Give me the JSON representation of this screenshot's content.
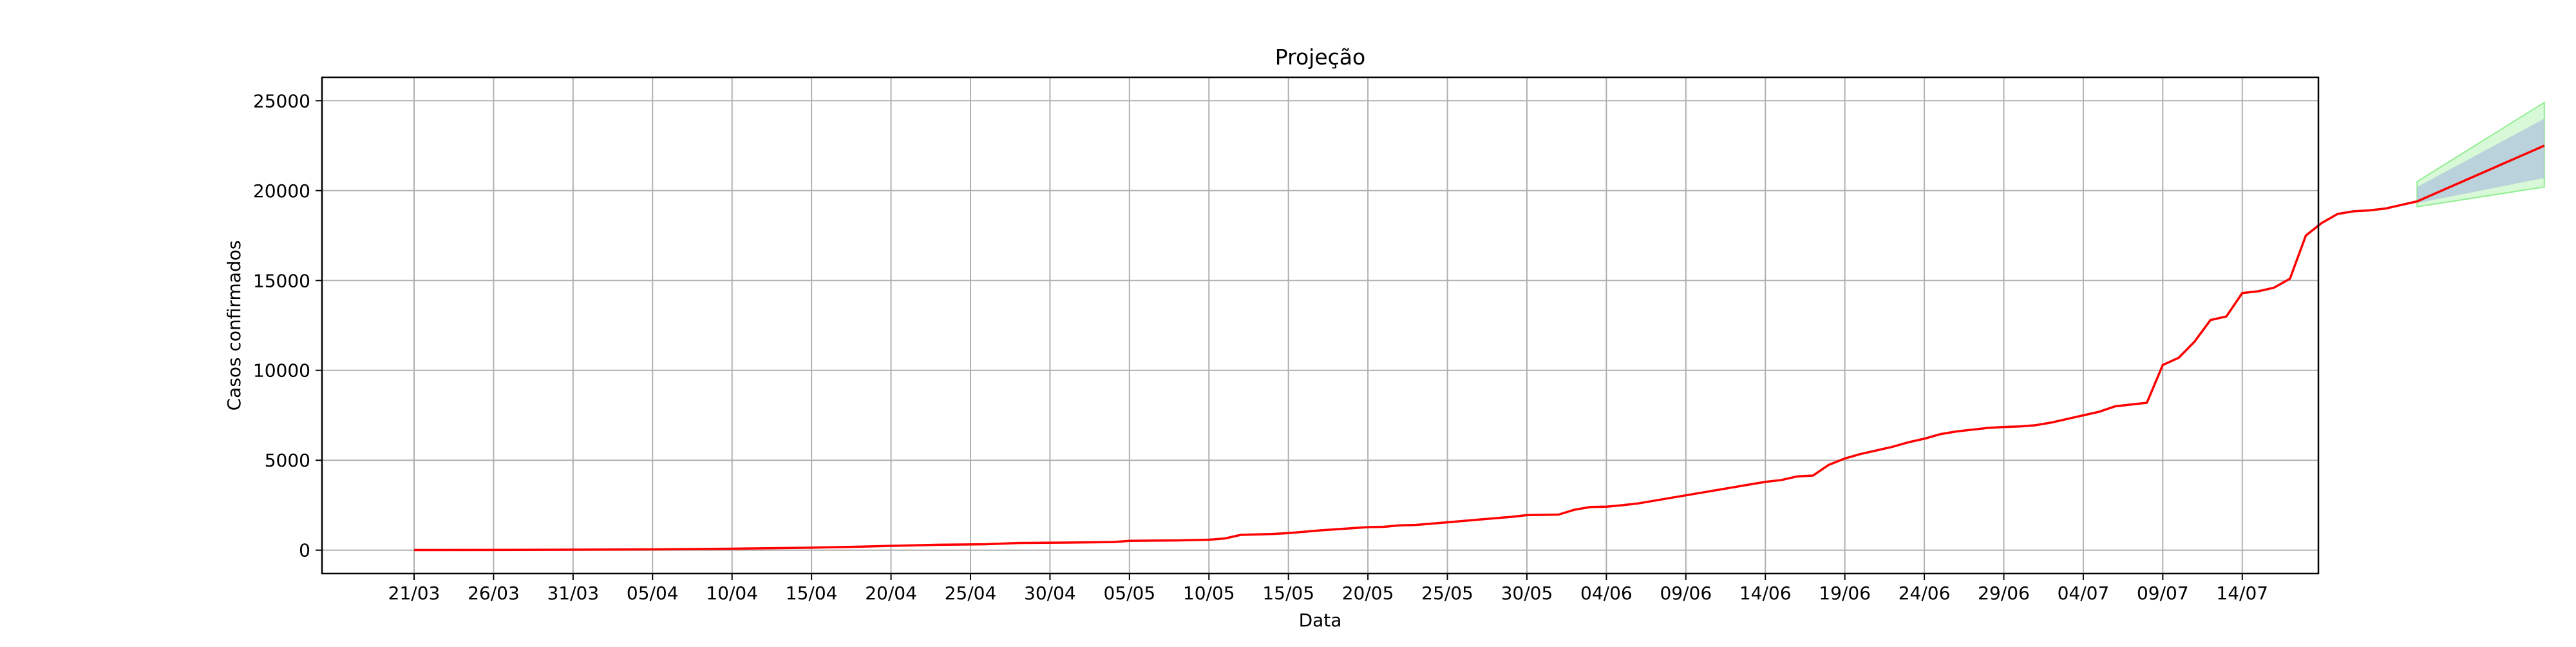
{
  "chart_data": {
    "type": "line",
    "title": "Projeção",
    "xlabel": "Data",
    "ylabel": "Casos confirmados",
    "x_start_label": "21/03",
    "x_tick_labels": [
      "21/03",
      "26/03",
      "31/03",
      "05/04",
      "10/04",
      "15/04",
      "20/04",
      "25/04",
      "30/04",
      "05/05",
      "10/05",
      "15/05",
      "20/05",
      "25/05",
      "30/05",
      "04/06",
      "09/06",
      "14/06",
      "19/06",
      "24/06",
      "29/06",
      "04/07",
      "09/07",
      "14/07"
    ],
    "y_ticks": [
      0,
      5000,
      10000,
      15000,
      20000,
      25000
    ],
    "ylim": [
      -1300,
      26300
    ],
    "grid": true,
    "line_color": "#ff0000",
    "band_inner_color": "#b0c4de",
    "band_outer_color": "#90ee90",
    "series": [
      {
        "values": [
          [
            0,
            10
          ],
          [
            5,
            15
          ],
          [
            10,
            25
          ],
          [
            15,
            45
          ],
          [
            20,
            80
          ],
          [
            25,
            140
          ],
          [
            28,
            190
          ],
          [
            30,
            240
          ],
          [
            33,
            300
          ],
          [
            36,
            330
          ],
          [
            38,
            400
          ],
          [
            41,
            420
          ],
          [
            44,
            450
          ],
          [
            45,
            520
          ],
          [
            48,
            540
          ],
          [
            50,
            580
          ],
          [
            51,
            650
          ],
          [
            52,
            850
          ],
          [
            54,
            900
          ],
          [
            55,
            950
          ],
          [
            57,
            1100
          ],
          [
            60,
            1280
          ],
          [
            61,
            1300
          ],
          [
            62,
            1380
          ],
          [
            63,
            1400
          ],
          [
            65,
            1550
          ],
          [
            67,
            1700
          ],
          [
            69,
            1850
          ],
          [
            70,
            1950
          ],
          [
            72,
            1980
          ],
          [
            73,
            2250
          ],
          [
            74,
            2400
          ],
          [
            75,
            2420
          ],
          [
            76,
            2500
          ],
          [
            77,
            2600
          ],
          [
            79,
            2900
          ],
          [
            81,
            3200
          ],
          [
            83,
            3500
          ],
          [
            84,
            3650
          ],
          [
            85,
            3800
          ],
          [
            86,
            3900
          ],
          [
            87,
            4100
          ],
          [
            88,
            4150
          ],
          [
            89,
            4750
          ],
          [
            90,
            5100
          ],
          [
            91,
            5350
          ],
          [
            92,
            5550
          ],
          [
            93,
            5750
          ],
          [
            94,
            6000
          ],
          [
            95,
            6200
          ],
          [
            96,
            6450
          ],
          [
            97,
            6600
          ],
          [
            98,
            6700
          ],
          [
            99,
            6800
          ],
          [
            100,
            6850
          ],
          [
            101,
            6880
          ],
          [
            102,
            6950
          ],
          [
            103,
            7100
          ],
          [
            104,
            7300
          ],
          [
            105,
            7500
          ],
          [
            106,
            7700
          ],
          [
            107,
            8000
          ],
          [
            108,
            8100
          ],
          [
            109,
            8200
          ],
          [
            110,
            10300
          ],
          [
            111,
            10700
          ],
          [
            112,
            11600
          ],
          [
            113,
            12800
          ],
          [
            114,
            13000
          ],
          [
            115,
            14300
          ],
          [
            116,
            14400
          ],
          [
            117,
            14600
          ],
          [
            118,
            15100
          ],
          [
            119,
            17500
          ],
          [
            120,
            18200
          ],
          [
            121,
            18700
          ],
          [
            122,
            18850
          ],
          [
            123,
            18900
          ],
          [
            124,
            19000
          ],
          [
            125,
            19200
          ],
          [
            126,
            19400
          ]
        ]
      },
      {
        "values": [
          [
            126,
            19400
          ],
          [
            134,
            22500
          ]
        ]
      }
    ],
    "bands": [
      {
        "kind": "outer",
        "start_day": 126,
        "end_day": 134,
        "lower": [
          19100,
          20200
        ],
        "upper": [
          20500,
          24900
        ]
      },
      {
        "kind": "inner",
        "start_day": 126,
        "end_day": 134,
        "lower": [
          19300,
          20700
        ],
        "upper": [
          20200,
          24000
        ]
      }
    ]
  }
}
